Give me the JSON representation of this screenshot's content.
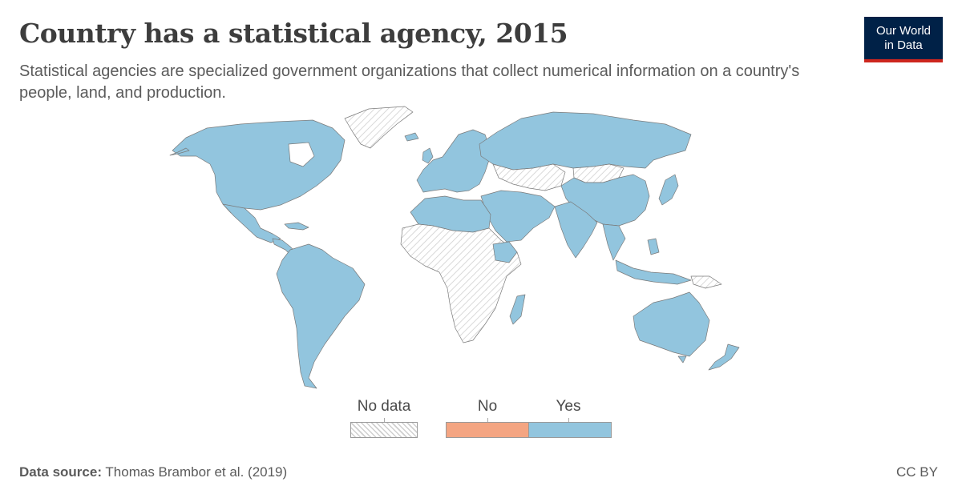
{
  "header": {
    "title": "Country has a statistical agency, 2015",
    "subtitle": "Statistical agencies are specialized government organizations that collect numerical information on a country's people, land, and production."
  },
  "logo": {
    "line1": "Our World",
    "line2": "in Data",
    "bg_color": "#002147",
    "accent_color": "#ce261e"
  },
  "legend": {
    "items": [
      {
        "label": "No data",
        "color": "hatched"
      },
      {
        "label": "No",
        "color": "#f4a582"
      },
      {
        "label": "Yes",
        "color": "#92c5de"
      }
    ]
  },
  "map_data": {
    "type": "choropleth",
    "year": 2015,
    "colors": {
      "yes": "#92c5de",
      "no": "#f4a582",
      "no_data": "hatched"
    },
    "regions": [
      {
        "name": "North America",
        "value": "Yes"
      },
      {
        "name": "Mexico",
        "value": "Yes"
      },
      {
        "name": "Central America",
        "value": "Yes"
      },
      {
        "name": "South America",
        "value": "Yes"
      },
      {
        "name": "Greenland",
        "value": "No data"
      },
      {
        "name": "Europe",
        "value": "Yes"
      },
      {
        "name": "Russia",
        "value": "Yes"
      },
      {
        "name": "Middle East",
        "value": "Yes"
      },
      {
        "name": "Central Asia",
        "value": "No data"
      },
      {
        "name": "Mongolia",
        "value": "No data"
      },
      {
        "name": "China",
        "value": "Yes"
      },
      {
        "name": "Japan",
        "value": "Yes"
      },
      {
        "name": "India",
        "value": "Yes"
      },
      {
        "name": "Southeast Asia",
        "value": "Yes"
      },
      {
        "name": "North Africa",
        "value": "Yes"
      },
      {
        "name": "Sub-Saharan Africa",
        "value": "No data"
      },
      {
        "name": "Ethiopia",
        "value": "Yes"
      },
      {
        "name": "Madagascar",
        "value": "Yes"
      },
      {
        "name": "Australia",
        "value": "Yes"
      },
      {
        "name": "New Zealand",
        "value": "Yes"
      },
      {
        "name": "Papua New Guinea",
        "value": "No data"
      }
    ]
  },
  "footer": {
    "source_label": "Data source:",
    "source_text": "Thomas Brambor et al. (2019)",
    "license": "CC BY"
  }
}
